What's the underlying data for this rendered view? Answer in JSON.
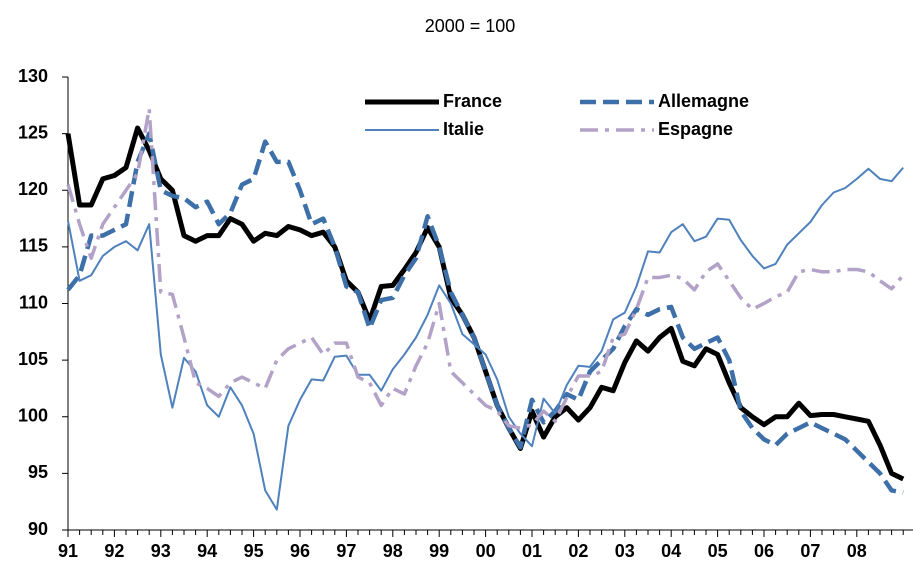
{
  "chart_data": {
    "type": "line",
    "title": "2000 = 100",
    "categories": [
      "91",
      null,
      null,
      null,
      "92",
      null,
      null,
      null,
      "93",
      null,
      null,
      null,
      "94",
      null,
      null,
      null,
      "95",
      null,
      null,
      null,
      "96",
      null,
      null,
      null,
      "97",
      null,
      null,
      null,
      "98",
      null,
      null,
      null,
      "99",
      null,
      null,
      null,
      "00",
      null,
      null,
      null,
      "01",
      null,
      null,
      null,
      "02",
      null,
      null,
      null,
      "03",
      null,
      null,
      null,
      "04",
      null,
      null,
      null,
      "05",
      null,
      null,
      null,
      "06",
      null,
      null,
      null,
      "07",
      null,
      null,
      null,
      "08",
      null,
      null,
      null,
      null
    ],
    "series": [
      {
        "name": "France",
        "color": "#000000",
        "style": "solid-bold",
        "values": [
          125,
          118.7,
          118.7,
          121,
          121.3,
          122,
          125.5,
          123.5,
          121,
          120,
          116,
          115.5,
          116,
          116,
          117.5,
          117,
          115.5,
          116.2,
          116,
          116.8,
          116.5,
          116,
          116.3,
          115,
          112,
          111,
          108.5,
          111.5,
          111.6,
          113,
          114.5,
          116.7,
          115,
          110.5,
          109,
          107,
          104,
          101,
          99,
          97.2,
          100.5,
          98.2,
          100,
          100.8,
          99.7,
          100.8,
          102.6,
          102.3,
          104.8,
          106.7,
          105.8,
          107,
          107.8,
          104.9,
          104.5,
          106,
          105.5,
          103,
          100.8,
          100,
          99.3,
          100,
          100,
          101.2,
          100.1,
          100.2,
          100.2,
          100,
          99.8,
          99.6,
          97.5,
          95,
          94.5
        ]
      },
      {
        "name": "Allemagne",
        "color": "#3d6fa8",
        "style": "dashed",
        "values": [
          111.2,
          112.5,
          116,
          116,
          116.5,
          117,
          122.5,
          125,
          120,
          119.5,
          119.3,
          118.5,
          119,
          117,
          118,
          120.5,
          121,
          124.3,
          122.5,
          122.5,
          120,
          117,
          117.5,
          115,
          111.5,
          111,
          107.8,
          110.3,
          110.5,
          112.5,
          114,
          117.7,
          115,
          111,
          109,
          107,
          104,
          101,
          99,
          97.3,
          101.5,
          99.5,
          100.5,
          102,
          101.5,
          104,
          105,
          106,
          108,
          109.5,
          109,
          109.5,
          109.7,
          107,
          106,
          106.5,
          107,
          105,
          100.5,
          99,
          98,
          97.5,
          98.5,
          99,
          99.5,
          99,
          98.5,
          98,
          97,
          96,
          95,
          93.5,
          93.3
        ]
      },
      {
        "name": "Italie",
        "color": "#4f81bd",
        "style": "solid",
        "values": [
          117.3,
          112,
          112.5,
          114.2,
          115,
          115.5,
          114.7,
          117,
          105.5,
          100.8,
          105.2,
          104,
          101,
          100,
          102.6,
          101,
          98.5,
          93.5,
          91.8,
          99.2,
          101.5,
          103.3,
          103.2,
          105.3,
          105.4,
          103.7,
          103.7,
          102.3,
          104.2,
          105.5,
          107,
          109,
          111.6,
          110,
          107.3,
          106.4,
          105.5,
          103.3,
          100,
          98.5,
          97.4,
          101.6,
          100.3,
          102.8,
          104.5,
          104.4,
          105.8,
          108.6,
          109.2,
          111.5,
          114.6,
          114.5,
          116.3,
          117,
          115.5,
          115.9,
          117.5,
          117.4,
          115.6,
          114.2,
          113.1,
          113.5,
          115.2,
          116.2,
          117.2,
          118.7,
          119.8,
          120.2,
          121,
          121.9,
          121,
          120.8,
          122
        ]
      },
      {
        "name": "Espagne",
        "color": "#b3a2c7",
        "style": "dash-dot",
        "values": [
          120.5,
          117,
          114,
          117,
          118.5,
          120,
          121.5,
          127.2,
          111,
          110.8,
          107,
          103,
          102.5,
          101.8,
          103,
          103.5,
          103,
          102.5,
          105,
          106,
          106.5,
          107,
          105.5,
          106.5,
          106.5,
          103.5,
          103,
          101,
          102.5,
          102,
          104.5,
          106.5,
          110,
          104,
          103,
          102,
          101,
          100.5,
          99.2,
          99,
          99.3,
          100.5,
          99.6,
          101.7,
          103.6,
          103.6,
          104,
          107,
          107.3,
          109.5,
          112.3,
          112.3,
          112.5,
          112.2,
          111.2,
          112.8,
          113.5,
          112,
          110.5,
          109.5,
          110,
          110.6,
          111,
          112.8,
          113,
          112.8,
          112.8,
          113,
          113,
          112.8,
          112,
          111.3,
          112.5
        ]
      }
    ],
    "ylim": [
      90,
      130
    ],
    "yticks": [
      90,
      95,
      100,
      105,
      110,
      115,
      120,
      125,
      130
    ],
    "grid": false
  }
}
